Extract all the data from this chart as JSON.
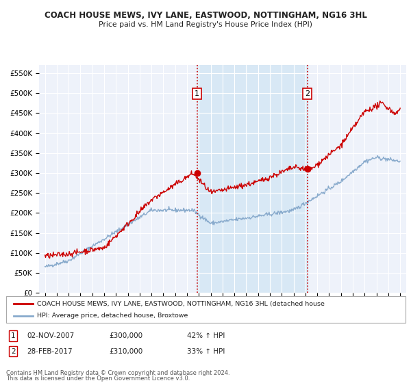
{
  "title": "COACH HOUSE MEWS, IVY LANE, EASTWOOD, NOTTINGHAM, NG16 3HL",
  "subtitle": "Price paid vs. HM Land Registry's House Price Index (HPI)",
  "legend_line1": "COACH HOUSE MEWS, IVY LANE, EASTWOOD, NOTTINGHAM, NG16 3HL (detached house",
  "legend_line2": "HPI: Average price, detached house, Broxtowe",
  "footer1": "Contains HM Land Registry data © Crown copyright and database right 2024.",
  "footer2": "This data is licensed under the Open Government Licence v3.0.",
  "sale1_label": "1",
  "sale1_date": "02-NOV-2007",
  "sale1_price": "£300,000",
  "sale1_hpi": "42% ↑ HPI",
  "sale1_x": 2007.84,
  "sale1_y": 300000,
  "sale2_label": "2",
  "sale2_date": "28-FEB-2017",
  "sale2_price": "£310,000",
  "sale2_hpi": "33% ↑ HPI",
  "sale2_x": 2017.16,
  "sale2_y": 310000,
  "vline1_x": 2007.84,
  "vline2_x": 2017.16,
  "xlim_left": 1994.5,
  "xlim_right": 2025.5,
  "ylim_bottom": 0,
  "ylim_top": 570000,
  "yticks": [
    0,
    50000,
    100000,
    150000,
    200000,
    250000,
    300000,
    350000,
    400000,
    450000,
    500000,
    550000
  ],
  "ytick_labels": [
    "£0",
    "£50K",
    "£100K",
    "£150K",
    "£200K",
    "£250K",
    "£300K",
    "£350K",
    "£400K",
    "£450K",
    "£500K",
    "£550K"
  ],
  "background_color": "#ffffff",
  "plot_bg_color": "#eef2fa",
  "grid_color": "#ffffff",
  "red_line_color": "#cc0000",
  "blue_line_color": "#88aacc",
  "vline_color": "#cc0000",
  "shade_color": "#d8e8f5",
  "marker_color": "#cc0000",
  "label_box_color": "#cc0000",
  "legend_border_color": "#aaaaaa",
  "sale_box_color": "#cc0000"
}
